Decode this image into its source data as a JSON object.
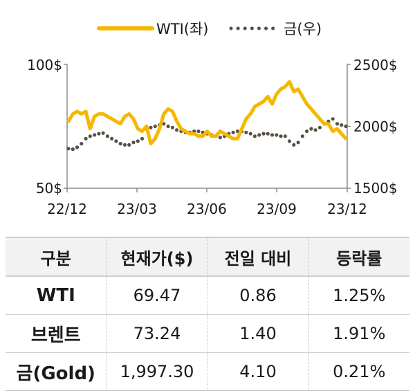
{
  "chart_data": {
    "type": "line",
    "x_ticks": [
      "22/12",
      "23/03",
      "23/06",
      "23/09",
      "23/12"
    ],
    "left_axis": {
      "ticks": [
        "100$",
        "50$"
      ],
      "ylim": [
        50,
        100
      ]
    },
    "right_axis": {
      "ticks": [
        "2500$",
        "2000$",
        "1500$"
      ],
      "ylim": [
        1500,
        2500
      ]
    },
    "grid": false,
    "legend_position": "top",
    "series": [
      {
        "name": "WTI(좌)",
        "axis": "left",
        "color": "#F5B800",
        "style": "solid",
        "values": [
          77,
          80,
          81,
          80,
          81,
          74,
          79,
          80,
          80,
          79,
          78,
          77,
          76,
          79,
          80,
          78,
          74,
          73,
          75,
          68,
          70,
          74,
          80,
          82,
          81,
          77,
          74,
          73,
          72,
          72,
          71,
          71,
          73,
          71,
          71,
          73,
          72,
          71,
          70,
          70,
          74,
          78,
          80,
          83,
          84,
          85,
          87,
          84,
          88,
          90,
          91,
          93,
          89,
          90,
          87,
          84,
          82,
          80,
          78,
          76,
          76,
          73,
          74,
          72,
          70
        ]
      },
      {
        "name": "금(우)",
        "axis": "right",
        "color": "#5a4f45",
        "style": "dotted",
        "values": [
          1820,
          1815,
          1830,
          1860,
          1900,
          1920,
          1930,
          1940,
          1945,
          1920,
          1900,
          1880,
          1860,
          1850,
          1850,
          1870,
          1880,
          1900,
          1980,
          1990,
          2000,
          2010,
          2020,
          2000,
          1990,
          1970,
          1960,
          1950,
          1950,
          1960,
          1960,
          1950,
          1940,
          1930,
          1920,
          1910,
          1920,
          1940,
          1950,
          1960,
          1960,
          1950,
          1940,
          1920,
          1930,
          1940,
          1940,
          1930,
          1930,
          1920,
          1920,
          1880,
          1850,
          1870,
          1920,
          1960,
          1980,
          1970,
          1990,
          2020,
          2040,
          2060,
          2020,
          2010,
          2000
        ]
      }
    ]
  },
  "table": {
    "headers": [
      "구분",
      "현재가($)",
      "전일 대비",
      "등락률"
    ],
    "rows": [
      [
        "WTI",
        "69.47",
        "0.86",
        "1.25%"
      ],
      [
        "브렌트",
        "73.24",
        "1.40",
        "1.91%"
      ],
      [
        "금(Gold)",
        "1,997.30",
        "4.10",
        "0.21%"
      ]
    ]
  }
}
